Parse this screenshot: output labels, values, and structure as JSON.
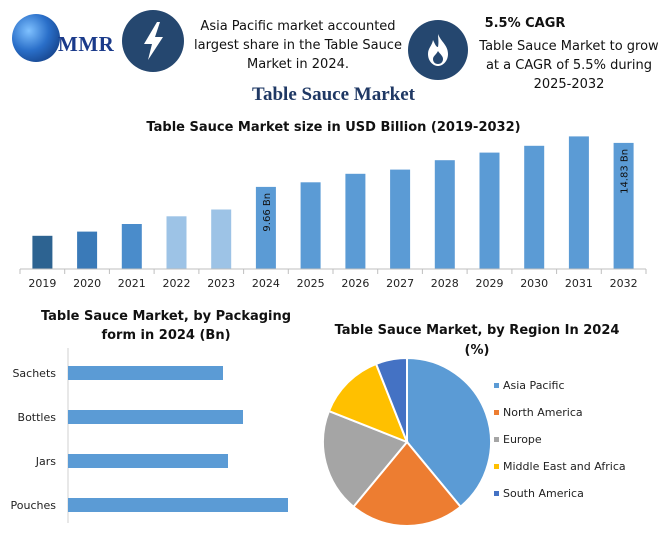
{
  "header": {
    "logo_text": "MMR",
    "info_left": "Asia Pacific market accounted largest share in the Table Sauce Market in 2024.",
    "cagr_title": "5.5% CAGR",
    "cagr_text": "Table Sauce Market to grow at a CAGR of 5.5% during 2025-2032"
  },
  "main_title": "Table Sauce Market",
  "colors": {
    "bar_primary": "#5b9bd5",
    "bar_dark": "#2f6ea8",
    "bar_light": "#9dc3e6",
    "icon_bg": "#25476f",
    "asia_pacific": "#5b9bd5",
    "north_america": "#ed7d31",
    "europe": "#a5a5a5",
    "middle_east_africa": "#ffc000",
    "south_america": "#4472c4"
  },
  "chart_data": [
    {
      "type": "bar",
      "title": "Table Sauce Market size in USD Billion (2019-2032)",
      "categories": [
        "2019",
        "2020",
        "2021",
        "2022",
        "2023",
        "2024",
        "2025",
        "2026",
        "2027",
        "2028",
        "2029",
        "2030",
        "2031",
        "2032"
      ],
      "values": [
        3.9,
        4.4,
        5.3,
        6.2,
        7.0,
        9.66,
        10.2,
        11.2,
        11.7,
        12.8,
        13.7,
        14.5,
        15.6,
        14.83
      ],
      "data_labels": [
        "",
        "",
        "",
        "",
        "",
        "9.66 Bn",
        "",
        "",
        "",
        "",
        "",
        "",
        "",
        "14.83 Bn"
      ],
      "ylim": [
        0,
        16
      ]
    },
    {
      "type": "bar",
      "orientation": "horizontal",
      "title": "Table Sauce Market, by Packaging form in 2024 (Bn)",
      "categories": [
        "Sachets",
        "Bottles",
        "Jars",
        "Pouches"
      ],
      "values": [
        1.55,
        1.75,
        1.6,
        2.2
      ],
      "xlim": [
        0,
        2.6
      ]
    },
    {
      "type": "pie",
      "title": "Table Sauce Market, by Region In 2024 (%)",
      "categories": [
        "Asia Pacific",
        "North America",
        "Europe",
        "Middle East and Africa",
        "South America"
      ],
      "values": [
        39,
        22,
        20,
        13,
        6
      ],
      "legend": "right"
    }
  ]
}
